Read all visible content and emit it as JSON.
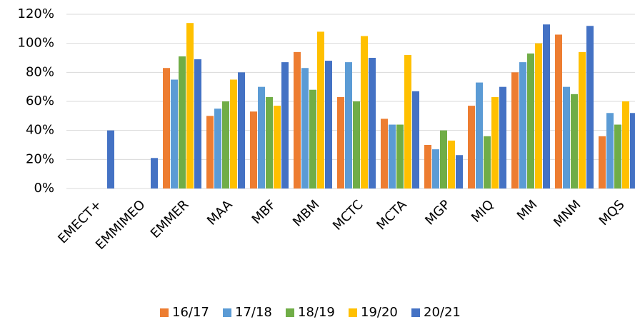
{
  "chart_data": {
    "type": "bar",
    "categories": [
      "EMECT+",
      "EMMIMEO",
      "EMMER",
      "MAA",
      "MBF",
      "MBM",
      "MCTC",
      "MCTA",
      "MGP",
      "MIQ",
      "MM",
      "MNM",
      "MQS"
    ],
    "series": [
      {
        "name": "16/17",
        "color": "#ed7d31",
        "values": [
          null,
          null,
          83,
          50,
          53,
          94,
          63,
          48,
          30,
          57,
          80,
          106,
          36
        ]
      },
      {
        "name": "17/18",
        "color": "#5b9bd5",
        "values": [
          null,
          null,
          75,
          55,
          70,
          83,
          87,
          44,
          27,
          73,
          87,
          70,
          52
        ]
      },
      {
        "name": "18/19",
        "color": "#70ad47",
        "values": [
          null,
          null,
          91,
          60,
          63,
          68,
          60,
          44,
          40,
          36,
          93,
          65,
          44
        ]
      },
      {
        "name": "19/20",
        "color": "#ffc000",
        "values": [
          null,
          null,
          114,
          75,
          57,
          108,
          105,
          92,
          33,
          63,
          100,
          94,
          60
        ]
      },
      {
        "name": "20/21",
        "color": "#4472c4",
        "values": [
          40,
          21,
          89,
          80,
          87,
          88,
          90,
          67,
          23,
          70,
          113,
          112,
          52
        ]
      }
    ],
    "ylim": [
      0,
      120
    ],
    "yticks": [
      {
        "value": 0,
        "label": "0%"
      },
      {
        "value": 20,
        "label": "20%"
      },
      {
        "value": 40,
        "label": "40%"
      },
      {
        "value": 60,
        "label": "60%"
      },
      {
        "value": 80,
        "label": "80%"
      },
      {
        "value": 100,
        "label": "100%"
      },
      {
        "value": 120,
        "label": "120%"
      }
    ],
    "grid": true,
    "legend": "bottom"
  }
}
